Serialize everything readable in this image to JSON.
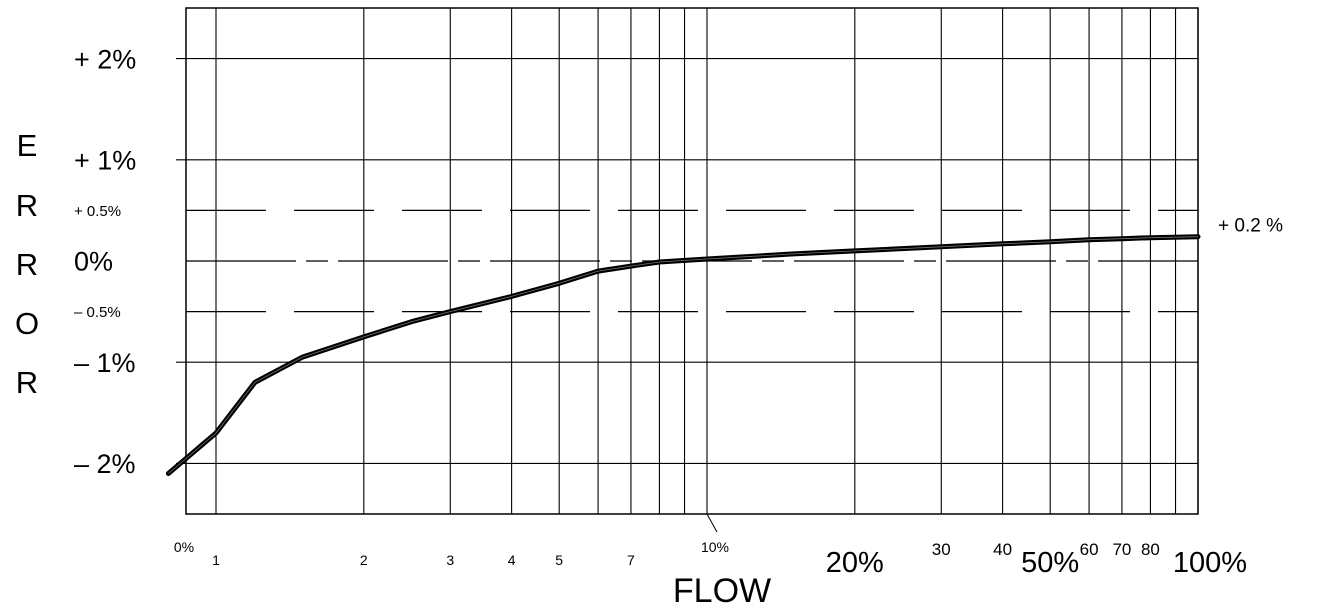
{
  "chart_data": {
    "type": "line",
    "xlabel": "FLOW",
    "ylabel_letters": [
      "E",
      "R",
      "R",
      "O",
      "R"
    ],
    "xlim": [
      0,
      100
    ],
    "ylim": [
      -2.5,
      2.5
    ],
    "x_scale": "log",
    "x_tick_labels": [
      {
        "label": "0%",
        "x": 0.55
      },
      {
        "label": "1",
        "x": 1
      },
      {
        "label": "2",
        "x": 2
      },
      {
        "label": "3",
        "x": 3
      },
      {
        "label": "4",
        "x": 4
      },
      {
        "label": "5",
        "x": 5
      },
      {
        "label": "7",
        "x": 7
      },
      {
        "label": "10%",
        "x": 10
      },
      {
        "label": "20%",
        "x": 20
      },
      {
        "label": "30",
        "x": 30
      },
      {
        "label": "40",
        "x": 40
      },
      {
        "label": "50%",
        "x": 50
      },
      {
        "label": "60",
        "x": 60
      },
      {
        "label": "70",
        "x": 70
      },
      {
        "label": "80",
        "x": 80
      },
      {
        "label": "100%",
        "x": 100
      }
    ],
    "x_gridlines": [
      1,
      2,
      3,
      4,
      5,
      6,
      7,
      8,
      9,
      10,
      20,
      30,
      40,
      50,
      60,
      70,
      80,
      90,
      100
    ],
    "y_tick_labels": [
      {
        "label": "+ 2%",
        "y": 2,
        "style": "major"
      },
      {
        "label": "+ 1%",
        "y": 1,
        "style": "major"
      },
      {
        "label": "+ 0.5%",
        "y": 0.5,
        "style": "minor"
      },
      {
        "label": "0%",
        "y": 0,
        "style": "major"
      },
      {
        "label": "– 0.5%",
        "y": -0.5,
        "style": "minor"
      },
      {
        "label": "– 1%",
        "y": -1,
        "style": "major"
      },
      {
        "label": "– 2%",
        "y": -2,
        "style": "major"
      }
    ],
    "y_solid_gridlines": [
      2,
      1,
      -1,
      -2
    ],
    "dashed_lines": [
      {
        "y": 0.5,
        "style": "long-dash"
      },
      {
        "y": 0,
        "style": "dash-dot"
      },
      {
        "y": -0.5,
        "style": "long-dash"
      }
    ],
    "series": [
      {
        "x": [
          0.8,
          1,
          1.2,
          1.5,
          2,
          2.5,
          3,
          4,
          5,
          6,
          7,
          8,
          10,
          15,
          20,
          30,
          40,
          50,
          60,
          70,
          80,
          100
        ],
        "y": [
          -2.1,
          -1.7,
          -1.2,
          -0.95,
          -0.75,
          -0.6,
          -0.5,
          -0.35,
          -0.22,
          -0.1,
          -0.05,
          -0.01,
          0.02,
          0.07,
          0.1,
          0.14,
          0.17,
          0.19,
          0.21,
          0.22,
          0.23,
          0.24
        ]
      }
    ],
    "annotations": [
      {
        "text": "+ 0.2 %",
        "y": 0.22,
        "position": "right"
      }
    ]
  }
}
